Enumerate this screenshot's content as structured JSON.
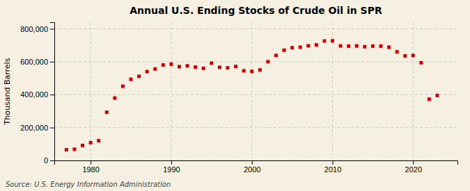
{
  "chart_data": {
    "type": "scatter",
    "title": "Annual U.S. Ending Stocks of Crude Oil in SPR",
    "ylabel": "Thousand Barrels",
    "annotations": [
      "Source: U.S. Energy Information Administration"
    ],
    "x": [
      1977,
      1978,
      1979,
      1980,
      1981,
      1982,
      1983,
      1984,
      1985,
      1986,
      1987,
      1988,
      1989,
      1990,
      1991,
      1992,
      1993,
      1994,
      1995,
      1996,
      1997,
      1998,
      1999,
      2000,
      2001,
      2002,
      2003,
      2004,
      2005,
      2006,
      2007,
      2008,
      2009,
      2010,
      2011,
      2012,
      2013,
      2014,
      2015,
      2016,
      2017,
      2018,
      2019,
      2020,
      2021,
      2022,
      2023
    ],
    "values": [
      65000,
      68000,
      91000,
      108000,
      120000,
      293000,
      379000,
      451000,
      493000,
      511000,
      540000,
      556000,
      580000,
      585000,
      570000,
      575000,
      567000,
      560000,
      591000,
      566000,
      563000,
      571000,
      545000,
      541000,
      550000,
      600000,
      638000,
      670000,
      685000,
      688000,
      697000,
      702000,
      726000,
      727000,
      696000,
      695000,
      696000,
      691000,
      695000,
      695000,
      688000,
      660000,
      635000,
      638000,
      594000,
      372000,
      395000
    ],
    "color": "#cc0000",
    "marker": "square",
    "xlim": [
      1975.5,
      2025.5
    ],
    "ylim": [
      0,
      840000
    ],
    "xticks": [
      1980,
      1990,
      2000,
      2010,
      2020
    ],
    "yticks": [
      0,
      {
        "value": 200000,
        "label": "200,000"
      },
      {
        "value": 400000,
        "label": "400,000"
      },
      {
        "value": 600000,
        "label": "600,000"
      },
      {
        "value": 800000,
        "label": "800,000"
      }
    ],
    "grid": true
  }
}
